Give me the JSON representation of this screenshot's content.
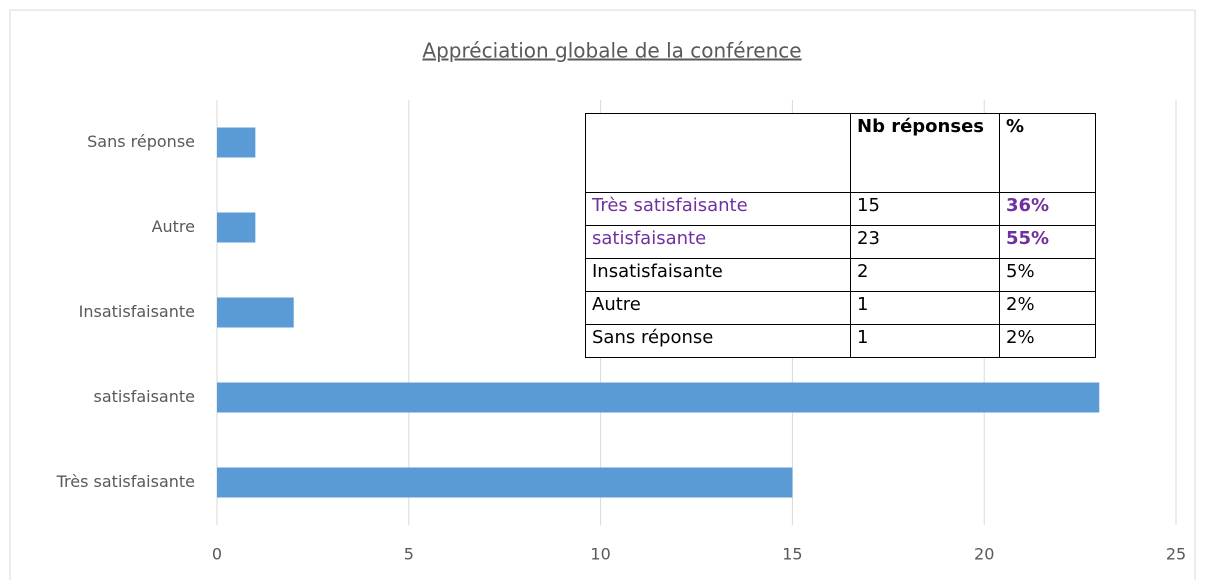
{
  "chart_data": {
    "type": "barh",
    "title": "Appréciation globale de la conférence",
    "categories": [
      "Très satisfaisante",
      "satisfaisante",
      "Insatisfaisante",
      "Autre",
      "Sans réponse"
    ],
    "values": [
      15,
      23,
      2,
      1,
      1
    ],
    "color": "#5b9bd5",
    "xlim": [
      0,
      25
    ],
    "xticks": [
      0,
      5,
      10,
      15,
      20,
      25
    ],
    "grid": true
  },
  "table": {
    "header": [
      "",
      "Nb réponses",
      "%"
    ],
    "rows": [
      [
        "Très satisfaisante",
        "15",
        "36%"
      ],
      [
        "satisfaisante",
        "23",
        "55%"
      ],
      [
        "Insatisfaisante",
        "2",
        "5%"
      ],
      [
        "Autre",
        "1",
        "2%"
      ],
      [
        "Sans réponse",
        "1",
        "2%"
      ]
    ]
  }
}
